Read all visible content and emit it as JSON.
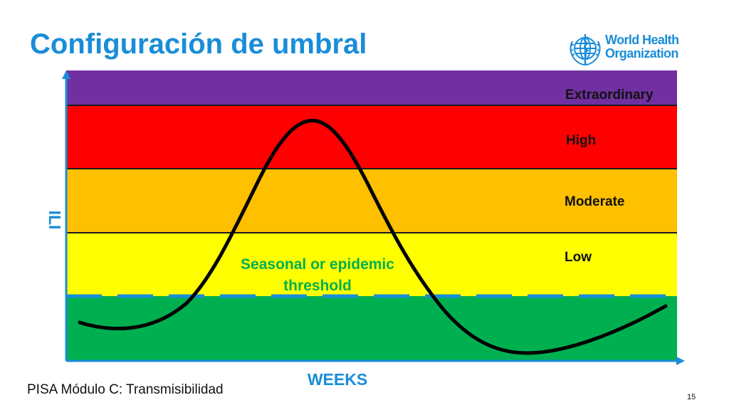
{
  "slide": {
    "title": "Configuración de umbral",
    "footer": "PISA Módulo C: Transmisibilidad",
    "page_number": "15"
  },
  "logo": {
    "line1": "World Health",
    "line2": "Organization",
    "icon": "who-emblem-icon"
  },
  "diagram": {
    "y_axis_label": "ILI",
    "x_axis_label": "WEEKS",
    "threshold_label_line1": "Seasonal or epidemic",
    "threshold_label_line2": "threshold",
    "bands": [
      {
        "label": "Extraordinary",
        "color": "#7030a0"
      },
      {
        "label": "High",
        "color": "#ff0000"
      },
      {
        "label": "Moderate",
        "color": "#ffc000"
      },
      {
        "label": "Low",
        "color": "#ffff00"
      },
      {
        "label": "",
        "color": "#00b050"
      }
    ],
    "colors": {
      "axis": "#1a8dd8",
      "threshold_line": "#1a8dd8",
      "threshold_text": "#00b050",
      "curve": "#000000",
      "title": "#1a8dd8"
    }
  }
}
